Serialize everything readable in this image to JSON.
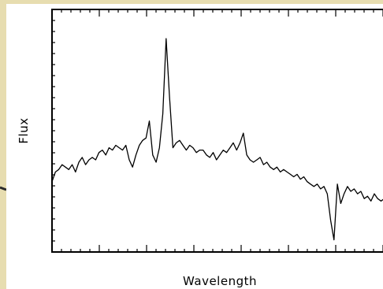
{
  "chart_data": {
    "type": "line",
    "xlabel": "Wavelength",
    "ylabel": "Flux",
    "tick_labels_shown": false,
    "grid": false,
    "legend": "none",
    "colors": {
      "background": "#e7ddb0",
      "plot_area": "#ffffff",
      "line": "#000000"
    },
    "xlim": [
      0,
      100
    ],
    "ylim": [
      0,
      100
    ],
    "series": [
      {
        "x": [
          0,
          1,
          2,
          3,
          4,
          5,
          6,
          7,
          8,
          9,
          10,
          11,
          12,
          13,
          14,
          15,
          16,
          17,
          18,
          19,
          20,
          21,
          22,
          23,
          24,
          25,
          26,
          27,
          28,
          29,
          30,
          31,
          32,
          33,
          34,
          35,
          36,
          37,
          38,
          39,
          40,
          41,
          42,
          43,
          44,
          45,
          46,
          47,
          48,
          49,
          50,
          51,
          52,
          53,
          54,
          55,
          56,
          57,
          58,
          59,
          60,
          61,
          62,
          63,
          64,
          65,
          66,
          67,
          68,
          69,
          70,
          71,
          72,
          73,
          74,
          75,
          76,
          77,
          78,
          79,
          80,
          81,
          82,
          83,
          84,
          85,
          86,
          87,
          88,
          89,
          90,
          91,
          92,
          93,
          94,
          95,
          96,
          97,
          98,
          99,
          100
        ],
        "y": [
          29,
          33,
          34,
          36,
          35,
          34,
          36,
          33,
          37,
          39,
          36,
          38,
          39,
          38,
          41,
          42,
          40,
          43,
          42,
          44,
          43,
          42,
          44,
          38,
          35,
          40,
          44,
          46,
          47,
          54,
          40,
          37,
          43,
          57,
          88,
          64,
          43,
          45,
          46,
          44,
          42,
          44,
          43,
          41,
          42,
          42,
          40,
          39,
          41,
          38,
          40,
          42,
          41,
          43,
          45,
          42,
          45,
          49,
          40,
          38,
          37,
          38,
          39,
          36,
          37,
          35,
          34,
          35,
          33,
          34,
          33,
          32,
          31,
          32,
          30,
          31,
          29,
          28,
          27,
          28,
          26,
          27,
          24,
          13,
          5,
          28,
          20,
          24,
          27,
          25,
          26,
          24,
          25,
          22,
          23,
          21,
          24,
          22,
          21,
          22,
          23
        ]
      }
    ]
  }
}
